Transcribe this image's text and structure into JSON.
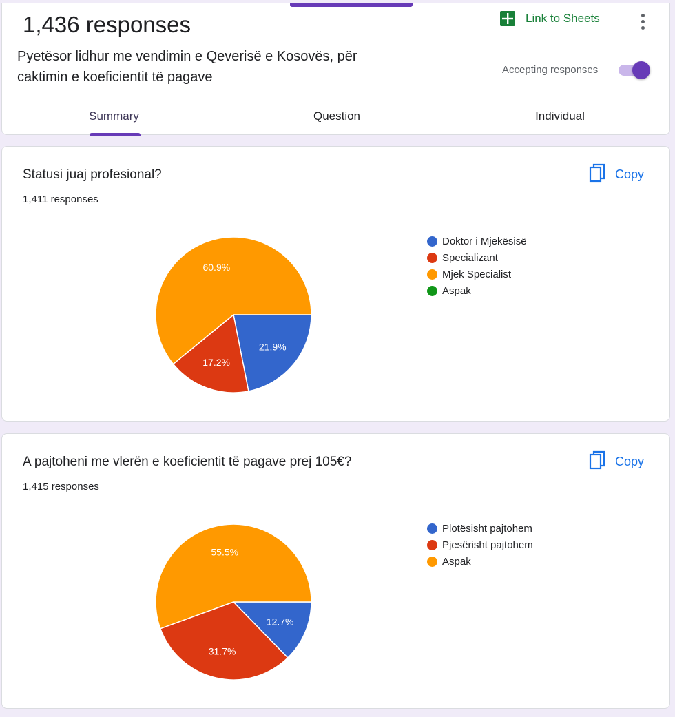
{
  "header": {
    "response_count": "1,436 responses",
    "form_title": "Pyetësor lidhur me vendimin e Qeverisë e Kosovës, për caktimin e koeficientit të pagave",
    "link_to_sheets": "Link to Sheets",
    "accepting_label": "Accepting responses",
    "accepting_on": true,
    "tabs": [
      "Summary",
      "Question",
      "Individual"
    ],
    "active_tab": "Summary"
  },
  "colors": {
    "accent": "#673ab7",
    "sheets_green": "#188038",
    "copy_blue": "#1a73e8",
    "series": [
      "#3366cc",
      "#dc3912",
      "#ff9900",
      "#109618"
    ]
  },
  "questions": [
    {
      "title": "Statusi juaj profesional?",
      "responses": "1,411 responses",
      "copy_label": "Copy",
      "legend": [
        "Doktor i Mjekësisë",
        "Specializant",
        "Mjek Specialist",
        "Aspak"
      ]
    },
    {
      "title": "A pajtoheni me vlerën e koeficientit të pagave prej 105€?",
      "responses": "1,415 responses",
      "copy_label": "Copy",
      "legend": [
        "Plotësisht pajtohem",
        "Pjesërisht pajtohem",
        "Aspak"
      ]
    }
  ],
  "chart_data": [
    {
      "type": "pie",
      "categories": [
        "Doktor i Mjekësisë",
        "Specializant",
        "Mjek Specialist",
        "Aspak"
      ],
      "values": [
        21.9,
        17.2,
        60.9,
        0
      ],
      "labels": [
        "21.9%",
        "17.2%",
        "60.9%",
        ""
      ],
      "legend_position": "right"
    },
    {
      "type": "pie",
      "categories": [
        "Plotësisht pajtohem",
        "Pjesërisht pajtohem",
        "Aspak"
      ],
      "values": [
        12.7,
        31.7,
        55.5
      ],
      "labels": [
        "12.7%",
        "31.7%",
        "55.5%"
      ],
      "legend_position": "right"
    }
  ]
}
